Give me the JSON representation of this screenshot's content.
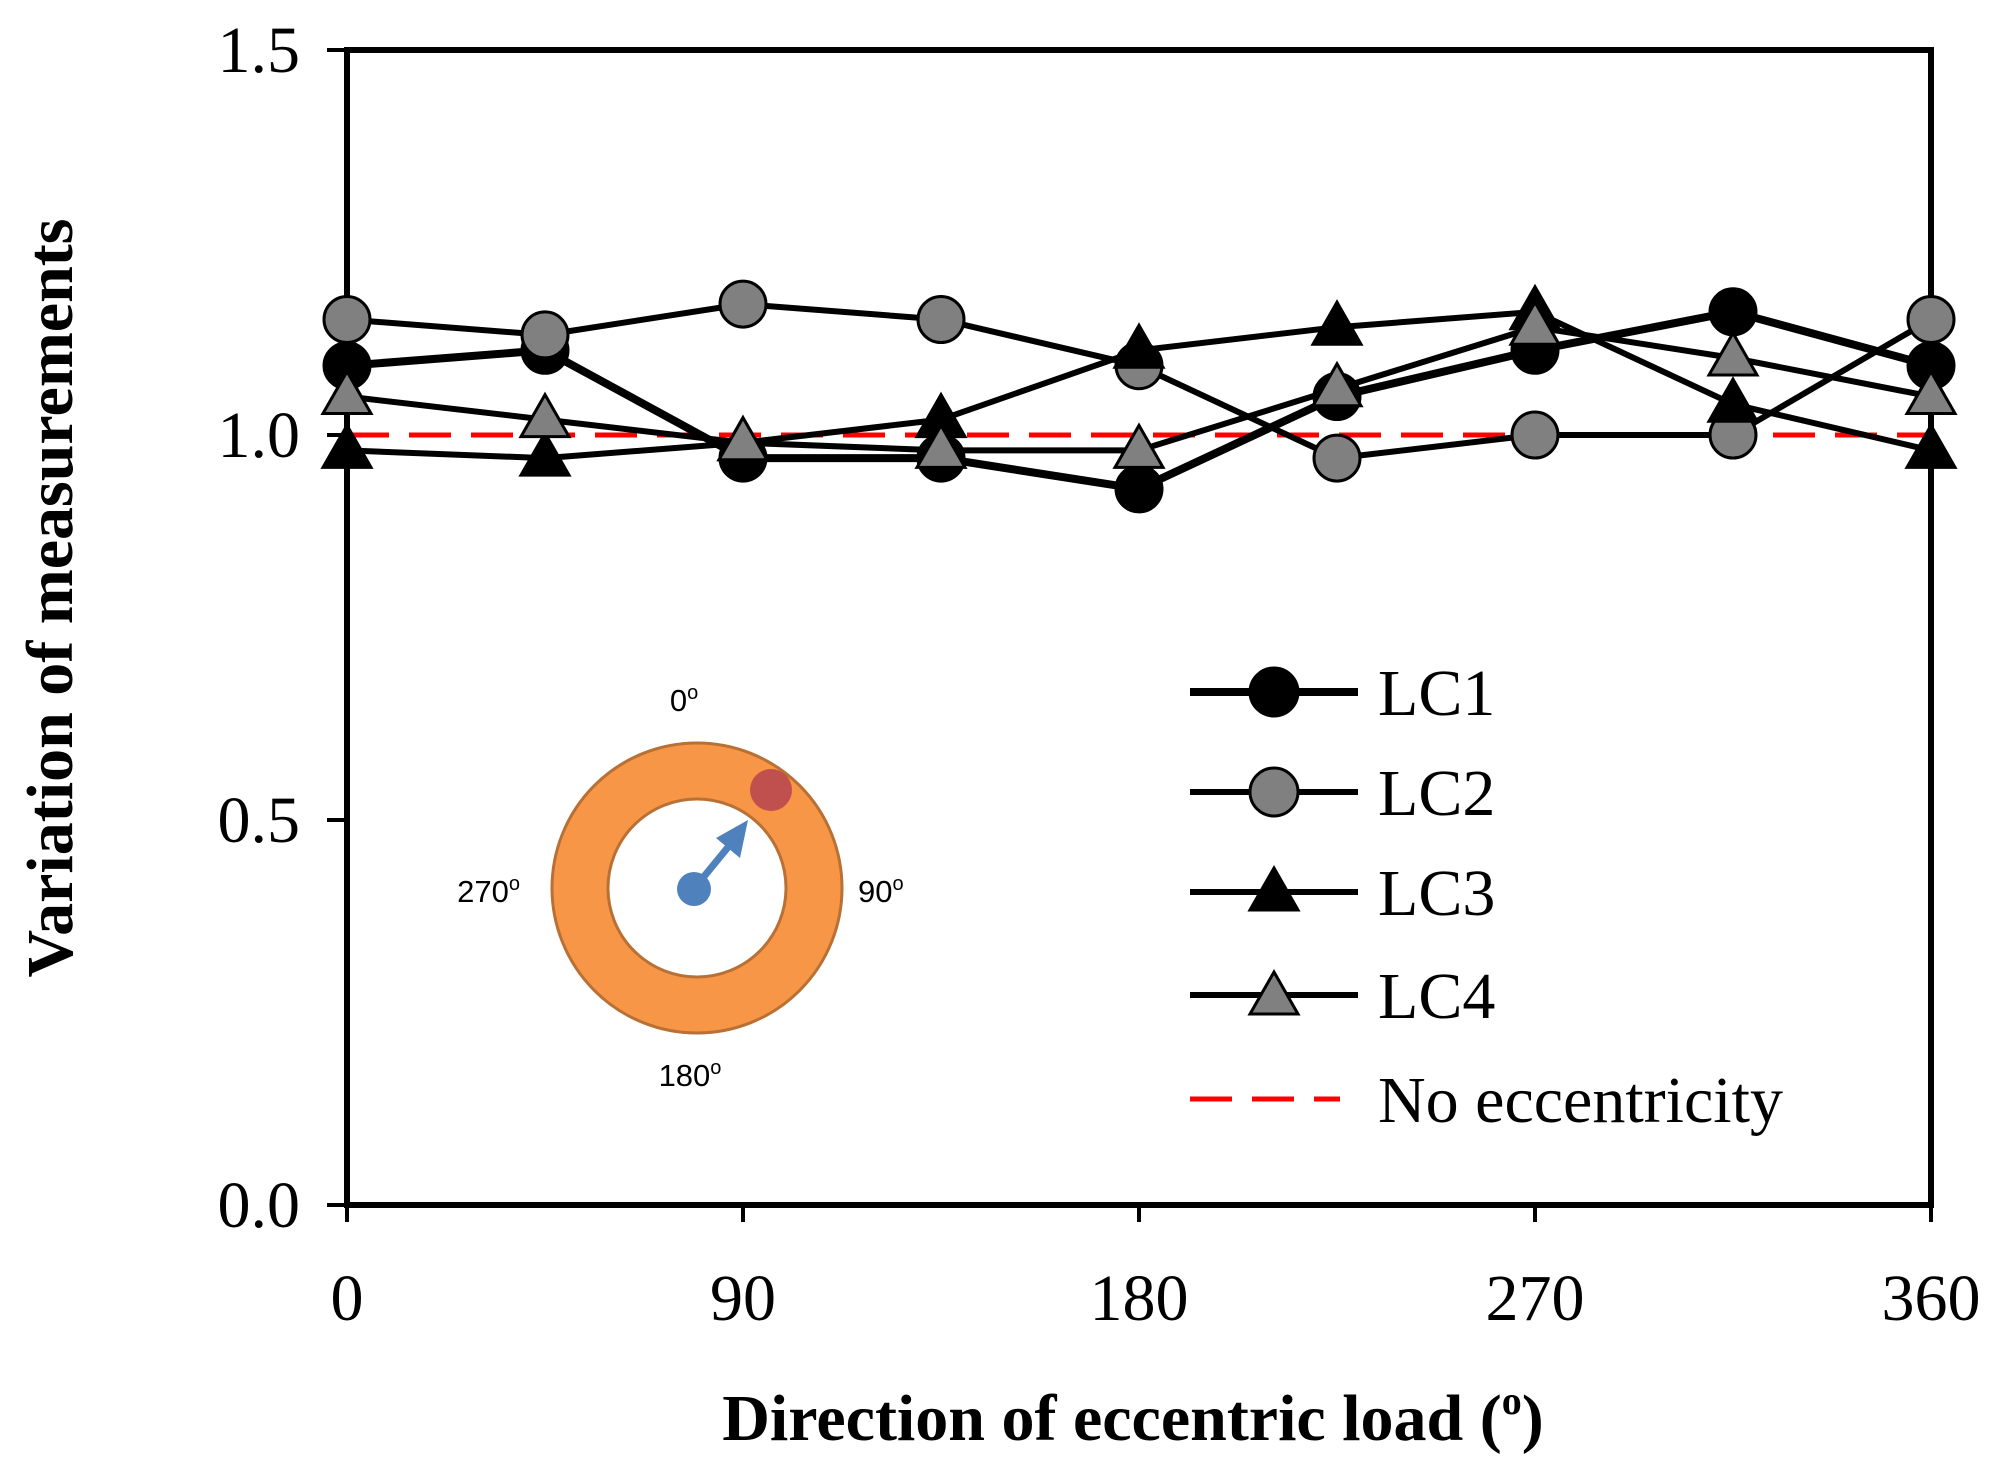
{
  "chart_data": {
    "type": "line",
    "title": "",
    "xlabel": "Direction of eccentric load (",
    "xlabel_sup": "o",
    "xlabel_close": ")",
    "ylabel": "Variation of measurements",
    "xlim": [
      0,
      360
    ],
    "ylim": [
      0,
      1.5
    ],
    "xticks": [
      0,
      90,
      180,
      270,
      360
    ],
    "xtick_labels": [
      "0",
      "90",
      "180",
      "270",
      "360"
    ],
    "yticks": [
      0.0,
      0.5,
      1.0,
      1.5
    ],
    "ytick_labels": [
      "0.0",
      "0.5",
      "1.0",
      "1.5"
    ],
    "grid": false,
    "legend_position": "bottom-right",
    "x": [
      0,
      45,
      90,
      135,
      180,
      225,
      270,
      315,
      360
    ],
    "series": [
      {
        "name": "LC1",
        "marker": "circle",
        "color": "#000000",
        "values": [
          1.09,
          1.11,
          0.97,
          0.97,
          0.93,
          1.05,
          1.11,
          1.16,
          1.09
        ]
      },
      {
        "name": "LC2",
        "marker": "circle",
        "color": "#808080",
        "values": [
          1.15,
          1.13,
          1.17,
          1.15,
          1.09,
          0.97,
          1.0,
          1.0,
          1.15
        ]
      },
      {
        "name": "LC3",
        "marker": "triangle",
        "color": "#000000",
        "values": [
          0.98,
          0.97,
          0.99,
          1.02,
          1.11,
          1.14,
          1.16,
          1.04,
          0.98
        ]
      },
      {
        "name": "LC4",
        "marker": "triangle",
        "color": "#808080",
        "values": [
          1.05,
          1.02,
          0.99,
          0.98,
          0.98,
          1.06,
          1.14,
          1.1,
          1.05
        ]
      }
    ],
    "reference_line": {
      "name": "No eccentricity",
      "value": 1.0,
      "color": "#ff0000",
      "style": "dashed"
    },
    "inset": {
      "label_top": "0",
      "label_right": "90",
      "label_bottom": "180",
      "label_left": "270",
      "degree_mark": "o",
      "ring_color": "#f79646",
      "ring_stroke": "#b97034",
      "center_color": "#4f81bd",
      "load_color": "#c0504d"
    }
  }
}
